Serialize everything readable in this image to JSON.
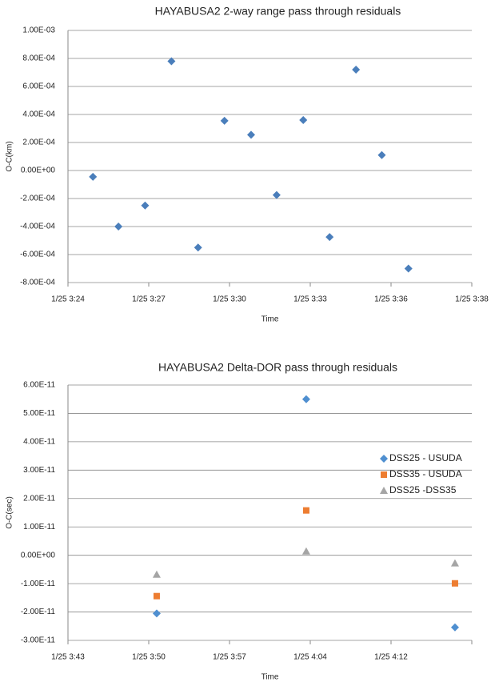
{
  "chart_data": [
    {
      "type": "scatter",
      "title": "HAYABUSA2 2-way range pass through residuals",
      "xlabel": "Time",
      "ylabel": "O-C(km)",
      "xlim": [
        204,
        218.4
      ],
      "xticks": [
        {
          "value": 204,
          "label": "1/25 3:24"
        },
        {
          "value": 206.88,
          "label": "1/25 3:27"
        },
        {
          "value": 209.76,
          "label": "1/25 3:30"
        },
        {
          "value": 212.64,
          "label": "1/25 3:33"
        },
        {
          "value": 215.52,
          "label": "1/25 3:36"
        },
        {
          "value": 218.4,
          "label": "1/25 3:38"
        }
      ],
      "ylim": [
        -0.0008,
        0.001
      ],
      "yticks": [
        {
          "value": -0.0008,
          "label": "-8.00E-04"
        },
        {
          "value": -0.0006,
          "label": "-6.00E-04"
        },
        {
          "value": -0.0004,
          "label": "-4.00E-04"
        },
        {
          "value": -0.0002,
          "label": "-2.00E-04"
        },
        {
          "value": 0,
          "label": "0.00E+00"
        },
        {
          "value": 0.0002,
          "label": "2.00E-04"
        },
        {
          "value": 0.0004,
          "label": "4.00E-04"
        },
        {
          "value": 0.0006,
          "label": "6.00E-04"
        },
        {
          "value": 0.0008,
          "label": "8.00E-04"
        },
        {
          "value": 0.001,
          "label": "1.00E-03"
        }
      ],
      "grid": true,
      "series": [
        {
          "color": "#4a7ebb",
          "marker": "diamond",
          "x": [
            204.89,
            205.8,
            206.75,
            207.69,
            208.64,
            209.58,
            210.53,
            211.44,
            212.39,
            213.33,
            214.27,
            215.19,
            216.14
          ],
          "values": [
            -4.5e-05,
            -0.0004,
            -0.00025,
            0.00078,
            -0.00055,
            0.000355,
            0.000255,
            -0.000175,
            0.00036,
            -0.000475,
            0.00072,
            0.00011,
            -0.0007
          ]
        }
      ]
    },
    {
      "type": "scatter",
      "title": "HAYABUSA2 Delta-DOR pass through residuals",
      "xlabel": "Time",
      "ylabel": "O-C(sec)",
      "xlim": [
        223,
        259
      ],
      "xticks": [
        {
          "value": 223,
          "label": "1/25 3:43"
        },
        {
          "value": 230.2,
          "label": "1/25 3:50"
        },
        {
          "value": 237.4,
          "label": "1/25 3:57"
        },
        {
          "value": 244.6,
          "label": "1/25 4:04"
        },
        {
          "value": 251.8,
          "label": "1/25 4:12"
        }
      ],
      "ylim": [
        -3e-11,
        6e-11
      ],
      "yticks": [
        {
          "value": -3e-11,
          "label": "-3.00E-11"
        },
        {
          "value": -2e-11,
          "label": "-2.00E-11"
        },
        {
          "value": -1e-11,
          "label": "-1.00E-11"
        },
        {
          "value": 0,
          "label": "0.00E+00"
        },
        {
          "value": 1e-11,
          "label": "1.00E-11"
        },
        {
          "value": 2e-11,
          "label": "2.00E-11"
        },
        {
          "value": 3e-11,
          "label": "3.00E-11"
        },
        {
          "value": 4e-11,
          "label": "4.00E-11"
        },
        {
          "value": 5e-11,
          "label": "5.00E-11"
        },
        {
          "value": 6e-11,
          "label": "6.00E-11"
        }
      ],
      "grid": true,
      "legend": "right",
      "series": [
        {
          "name": "DSS25 - USUDA",
          "color": "#4f8fd0",
          "marker": "diamond",
          "x": [
            230.91,
            244.24,
            257.5
          ],
          "values": [
            -2.05e-11,
            5.5e-11,
            -2.54e-11
          ]
        },
        {
          "name": "DSS35 - USUDA",
          "color": "#ed7d31",
          "marker": "square",
          "x": [
            230.91,
            244.24,
            257.5
          ],
          "values": [
            -1.44e-11,
            1.58e-11,
            -9.9e-12
          ]
        },
        {
          "name": "DSS25 -DSS35",
          "color": "#a5a5a5",
          "marker": "triangle",
          "x": [
            230.91,
            244.24,
            257.5
          ],
          "values": [
            -6.8e-12,
            1.4e-12,
            -2.8e-12
          ]
        }
      ]
    }
  ]
}
